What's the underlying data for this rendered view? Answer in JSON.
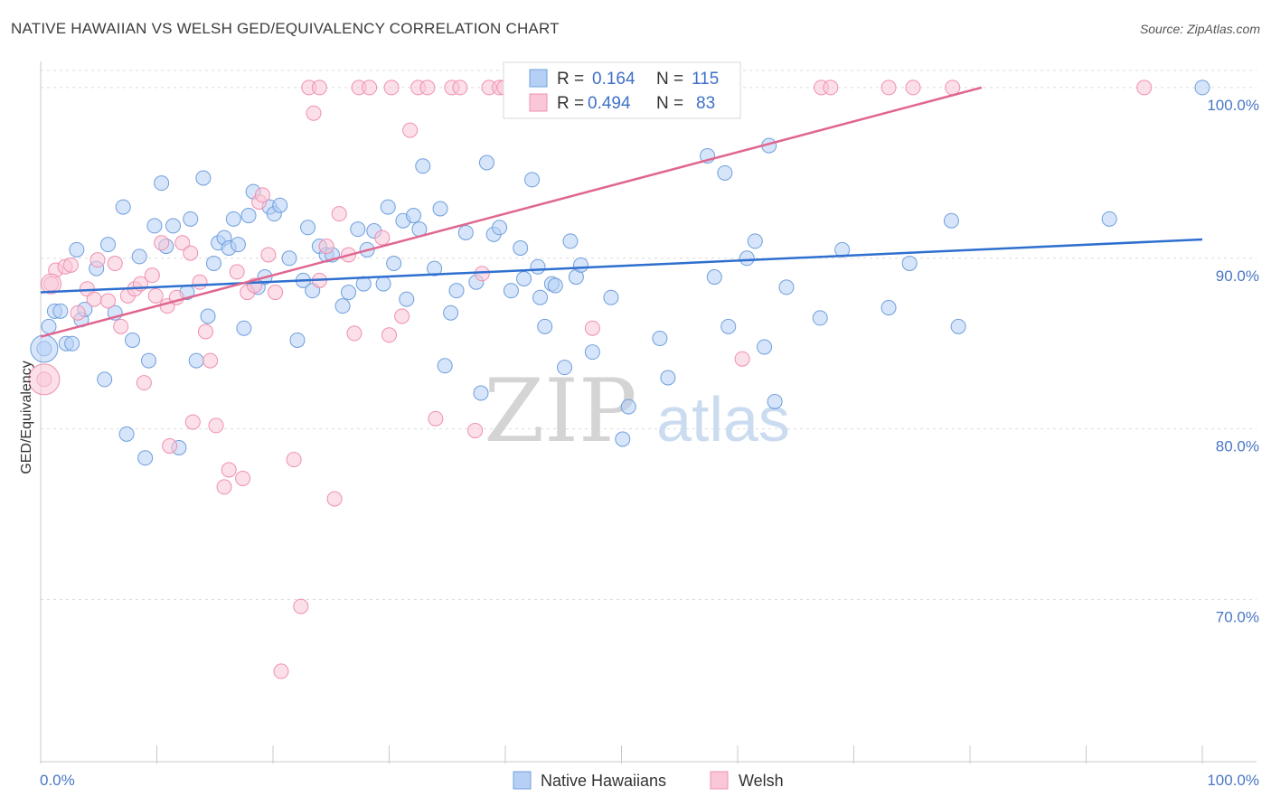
{
  "title": "NATIVE HAWAIIAN VS WELSH GED/EQUIVALENCY CORRELATION CHART",
  "source": "Source: ZipAtlas.com",
  "watermark": {
    "zip": "ZIP",
    "atlas": "atlas"
  },
  "colors": {
    "blue": "#6f9fdc",
    "blue_line": "#2e6fcf",
    "pink": "#ef8fb0",
    "pink_line": "#e0668f",
    "tick_text": "#4a77c4"
  },
  "legend": [
    {
      "r_label": "R =",
      "r_value": "0.164",
      "n_label": "N =",
      "n_value": "115"
    },
    {
      "r_label": "R =",
      "r_value": "0.494",
      "n_label": "N =",
      "n_value": "83"
    }
  ],
  "chart_data": {
    "type": "scatter",
    "title": "NATIVE HAWAIIAN VS WELSH GED/EQUIVALENCY CORRELATION CHART",
    "xlabel": "",
    "ylabel": "GED/Equivalency",
    "xlim": [
      0,
      100
    ],
    "ylim": [
      60.5,
      101
    ],
    "x_tick_labels": [
      "0.0%",
      "100.0%"
    ],
    "y_ticks": [
      70,
      80,
      90,
      100
    ],
    "y_tick_labels": [
      "70.0%",
      "80.0%",
      "90.0%",
      "100.0%"
    ],
    "grid": true,
    "legend_position": "top-center",
    "series": [
      {
        "name": "Native Hawaiians",
        "trend": [
          [
            0,
            88.0
          ],
          [
            100,
            91.1
          ]
        ],
        "points": [
          [
            0.3,
            84.7
          ],
          [
            0.7,
            86.0
          ],
          [
            1.2,
            86.9
          ],
          [
            1.7,
            86.9
          ],
          [
            2.2,
            85.0
          ],
          [
            2.7,
            85.0
          ],
          [
            3.1,
            90.5
          ],
          [
            3.5,
            86.4
          ],
          [
            3.8,
            87.0
          ],
          [
            4.8,
            89.4
          ],
          [
            5.5,
            82.9
          ],
          [
            5.8,
            90.8
          ],
          [
            6.4,
            86.8
          ],
          [
            7.1,
            93.0
          ],
          [
            7.4,
            79.7
          ],
          [
            7.9,
            85.2
          ],
          [
            8.5,
            90.1
          ],
          [
            9.0,
            78.3
          ],
          [
            9.3,
            84.0
          ],
          [
            9.8,
            91.9
          ],
          [
            10.4,
            94.4
          ],
          [
            10.8,
            90.7
          ],
          [
            11.4,
            91.9
          ],
          [
            11.9,
            78.9
          ],
          [
            12.6,
            88.0
          ],
          [
            12.9,
            92.3
          ],
          [
            13.4,
            84.0
          ],
          [
            14.0,
            94.7
          ],
          [
            14.4,
            86.6
          ],
          [
            14.9,
            89.7
          ],
          [
            15.3,
            90.9
          ],
          [
            15.8,
            91.2
          ],
          [
            16.2,
            90.6
          ],
          [
            16.6,
            92.3
          ],
          [
            17.0,
            90.8
          ],
          [
            17.5,
            85.9
          ],
          [
            17.9,
            92.5
          ],
          [
            18.3,
            93.9
          ],
          [
            18.7,
            88.3
          ],
          [
            19.3,
            88.9
          ],
          [
            19.7,
            93.0
          ],
          [
            20.1,
            92.6
          ],
          [
            20.6,
            93.1
          ],
          [
            21.4,
            90.0
          ],
          [
            22.1,
            85.2
          ],
          [
            22.6,
            88.7
          ],
          [
            23.0,
            91.8
          ],
          [
            23.4,
            88.1
          ],
          [
            24.0,
            90.7
          ],
          [
            24.6,
            90.2
          ],
          [
            25.1,
            90.2
          ],
          [
            26.0,
            87.2
          ],
          [
            26.5,
            88.0
          ],
          [
            27.3,
            91.7
          ],
          [
            27.8,
            88.5
          ],
          [
            28.1,
            90.5
          ],
          [
            28.7,
            91.6
          ],
          [
            29.5,
            88.5
          ],
          [
            29.9,
            93.0
          ],
          [
            30.4,
            89.7
          ],
          [
            31.2,
            92.2
          ],
          [
            31.5,
            87.6
          ],
          [
            32.1,
            92.5
          ],
          [
            32.6,
            91.7
          ],
          [
            32.9,
            95.4
          ],
          [
            33.9,
            89.4
          ],
          [
            34.4,
            92.9
          ],
          [
            34.8,
            83.7
          ],
          [
            35.3,
            86.8
          ],
          [
            35.8,
            88.1
          ],
          [
            36.6,
            91.5
          ],
          [
            37.5,
            88.6
          ],
          [
            37.9,
            82.1
          ],
          [
            38.4,
            95.6
          ],
          [
            39.0,
            91.4
          ],
          [
            39.5,
            91.8
          ],
          [
            40.5,
            88.1
          ],
          [
            41.3,
            90.6
          ],
          [
            41.6,
            88.8
          ],
          [
            42.3,
            94.6
          ],
          [
            42.8,
            89.5
          ],
          [
            43.0,
            87.7
          ],
          [
            43.4,
            86.0
          ],
          [
            44.0,
            88.5
          ],
          [
            44.3,
            88.4
          ],
          [
            45.1,
            83.6
          ],
          [
            45.6,
            91.0
          ],
          [
            46.1,
            88.9
          ],
          [
            46.5,
            89.6
          ],
          [
            47.5,
            84.5
          ],
          [
            49.1,
            87.7
          ],
          [
            50.1,
            79.4
          ],
          [
            50.6,
            81.3
          ],
          [
            53.3,
            85.3
          ],
          [
            54.0,
            83.0
          ],
          [
            57.4,
            96.0
          ],
          [
            58.0,
            88.9
          ],
          [
            58.9,
            95.0
          ],
          [
            59.2,
            86.0
          ],
          [
            60.8,
            90.0
          ],
          [
            61.5,
            91.0
          ],
          [
            62.3,
            84.8
          ],
          [
            62.7,
            96.6
          ],
          [
            63.2,
            81.6
          ],
          [
            64.2,
            88.3
          ],
          [
            67.1,
            86.5
          ],
          [
            69.0,
            90.5
          ],
          [
            73.0,
            87.1
          ],
          [
            74.8,
            89.7
          ],
          [
            78.4,
            92.2
          ],
          [
            79.0,
            86.0
          ],
          [
            92.0,
            92.3
          ],
          [
            59.3,
            100.0
          ],
          [
            100.0,
            100.0
          ]
        ]
      },
      {
        "name": "Welsh",
        "trend": [
          [
            0,
            85.4
          ],
          [
            81,
            100.0
          ]
        ],
        "points": [
          [
            0.3,
            82.9
          ],
          [
            0.9,
            88.5
          ],
          [
            1.3,
            89.3
          ],
          [
            2.1,
            89.5
          ],
          [
            2.6,
            89.6
          ],
          [
            3.2,
            86.8
          ],
          [
            4.0,
            88.2
          ],
          [
            4.6,
            87.6
          ],
          [
            4.9,
            89.9
          ],
          [
            5.8,
            87.5
          ],
          [
            6.4,
            89.7
          ],
          [
            6.9,
            86.0
          ],
          [
            7.5,
            87.8
          ],
          [
            8.1,
            88.2
          ],
          [
            8.6,
            88.5
          ],
          [
            8.9,
            82.7
          ],
          [
            9.6,
            89.0
          ],
          [
            9.9,
            87.8
          ],
          [
            10.4,
            90.9
          ],
          [
            10.9,
            87.2
          ],
          [
            11.1,
            79.0
          ],
          [
            11.7,
            87.7
          ],
          [
            12.2,
            90.9
          ],
          [
            12.9,
            90.3
          ],
          [
            13.1,
            80.4
          ],
          [
            13.7,
            88.6
          ],
          [
            14.2,
            85.7
          ],
          [
            14.6,
            84.0
          ],
          [
            15.1,
            80.2
          ],
          [
            15.8,
            76.6
          ],
          [
            16.2,
            77.6
          ],
          [
            16.9,
            89.2
          ],
          [
            17.4,
            77.1
          ],
          [
            17.8,
            88.0
          ],
          [
            18.4,
            88.4
          ],
          [
            18.8,
            93.3
          ],
          [
            19.1,
            93.7
          ],
          [
            19.6,
            90.2
          ],
          [
            20.2,
            88.0
          ],
          [
            20.7,
            65.8
          ],
          [
            21.8,
            78.2
          ],
          [
            22.4,
            69.6
          ],
          [
            23.5,
            98.5
          ],
          [
            24.0,
            88.7
          ],
          [
            24.6,
            90.7
          ],
          [
            25.3,
            75.9
          ],
          [
            25.7,
            92.6
          ],
          [
            26.5,
            90.2
          ],
          [
            27.0,
            85.6
          ],
          [
            29.4,
            91.2
          ],
          [
            30.0,
            85.5
          ],
          [
            31.1,
            86.6
          ],
          [
            31.8,
            97.5
          ],
          [
            34.0,
            80.6
          ],
          [
            35.4,
            100.0
          ],
          [
            36.1,
            100.0
          ],
          [
            37.4,
            79.9
          ],
          [
            38.0,
            89.1
          ],
          [
            38.6,
            100.0
          ],
          [
            39.5,
            100.0
          ],
          [
            40.5,
            100.0
          ],
          [
            47.5,
            85.9
          ],
          [
            60.4,
            84.1
          ],
          [
            67.2,
            100.0
          ],
          [
            68.0,
            100.0
          ],
          [
            73.0,
            100.0
          ],
          [
            75.1,
            100.0
          ],
          [
            78.5,
            100.0
          ],
          [
            95.0,
            100.0
          ],
          [
            23.1,
            100.0
          ],
          [
            24.0,
            100.0
          ],
          [
            27.4,
            100.0
          ],
          [
            28.3,
            100.0
          ],
          [
            30.2,
            100.0
          ],
          [
            32.5,
            100.0
          ],
          [
            33.3,
            100.0
          ],
          [
            39.9,
            100.0
          ]
        ]
      }
    ]
  },
  "bottom_legend": [
    {
      "label": "Native Hawaiians",
      "color": "#b6d0f5",
      "stroke": "#6f9fdc"
    },
    {
      "label": "Welsh",
      "color": "#f9c7d7",
      "stroke": "#ef8fb0"
    }
  ]
}
